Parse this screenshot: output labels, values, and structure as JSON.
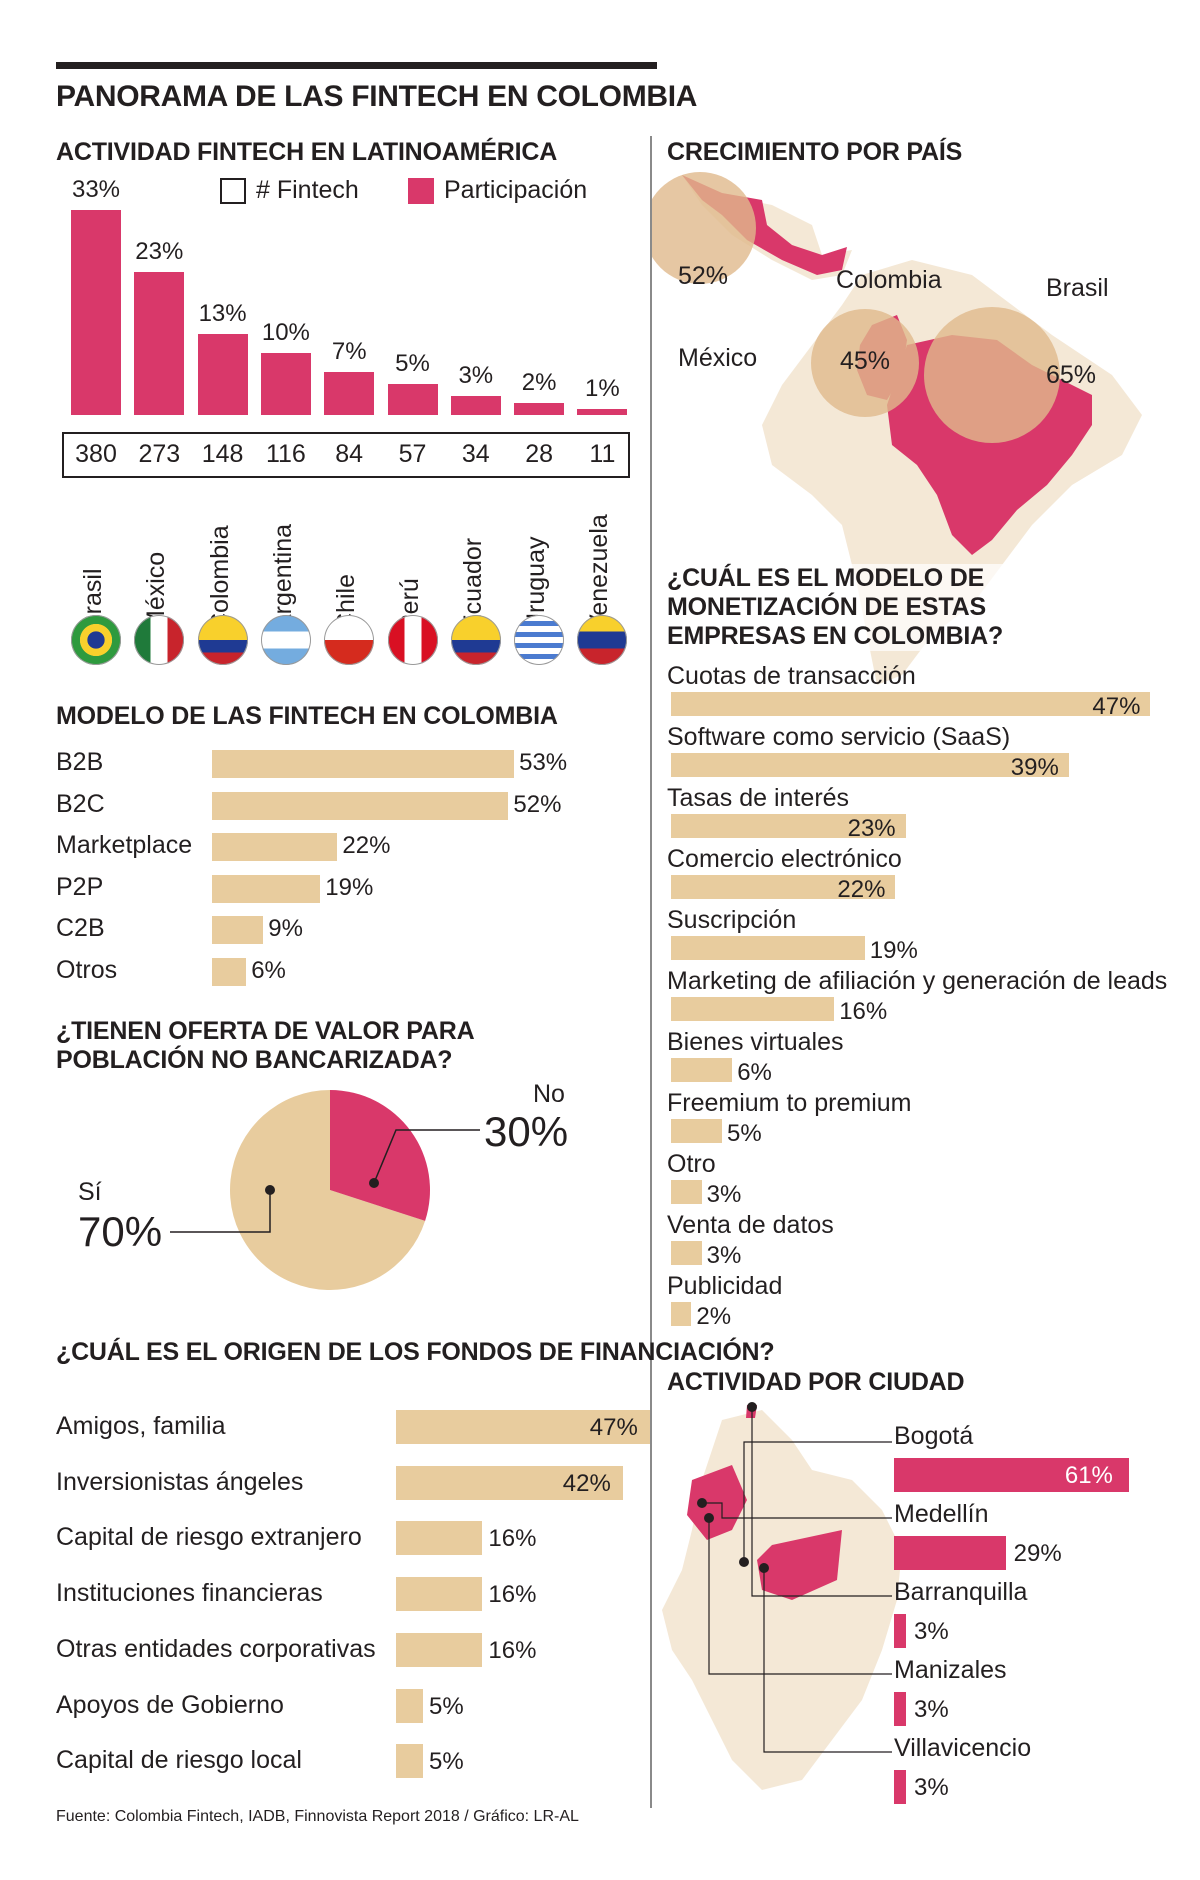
{
  "title": "PANORAMA DE LAS FINTECH EN COLOMBIA",
  "source": "Fuente: Colombia Fintech, IADB, Finnovista Report 2018 / Gráfico: LR-AL",
  "colors": {
    "pink": "#d9386a",
    "tan": "#e8cc9e",
    "ink": "#231f20"
  },
  "chart_data": [
    {
      "id": "latam",
      "type": "bar",
      "title": "ACTIVIDAD FINTECH EN LATINOAMÉRICA",
      "legend": [
        "# Fintech",
        "Participación"
      ],
      "categories": [
        "Brasil",
        "México",
        "Colombia",
        "Argentina",
        "Chile",
        "Perú",
        "Ecuador",
        "Uruguay",
        "Venezuela"
      ],
      "share": [
        33,
        23,
        13,
        10,
        7,
        5,
        3,
        2,
        1
      ],
      "share_labels": [
        "33%",
        "23%",
        "13%",
        "10%",
        "7%",
        "5%",
        "3%",
        "2%",
        "1%"
      ],
      "counts": [
        "380",
        "273",
        "148",
        "116",
        "84",
        "57",
        "34",
        "28",
        "11"
      ],
      "flag_icons": [
        "brazil-flag-icon",
        "mexico-flag-icon",
        "colombia-flag-icon",
        "argentina-flag-icon",
        "chile-flag-icon",
        "peru-flag-icon",
        "ecuador-flag-icon",
        "uruguay-flag-icon",
        "venezuela-flag-icon"
      ]
    },
    {
      "id": "growth",
      "type": "map",
      "title": "CRECIMIENTO POR PAÍS",
      "items": [
        {
          "country": "México",
          "value": "52%"
        },
        {
          "country": "Colombia",
          "value": "45%"
        },
        {
          "country": "Brasil",
          "value": "65%"
        }
      ]
    },
    {
      "id": "model",
      "type": "bar",
      "title": "MODELO DE LAS FINTECH EN COLOMBIA",
      "categories": [
        "B2B",
        "B2C",
        "Marketplace",
        "P2P",
        "C2B",
        "Otros"
      ],
      "values": [
        53,
        52,
        22,
        19,
        9,
        6
      ],
      "labels": [
        "53%",
        "52%",
        "22%",
        "19%",
        "9%",
        "6%"
      ]
    },
    {
      "id": "monetization",
      "type": "bar",
      "title": "¿CUÁL ES EL MODELO DE MONETIZACIÓN DE ESTAS EMPRESAS EN COLOMBIA?",
      "categories": [
        "Cuotas de transacción",
        "Software como servicio (SaaS)",
        "Tasas de interés",
        "Comercio electrónico",
        "Suscripción",
        "Marketing de afiliación y generación de leads",
        "Bienes virtuales",
        "Freemium to premium",
        "Otro",
        "Venta de datos",
        "Publicidad"
      ],
      "values": [
        47,
        39,
        23,
        22,
        19,
        16,
        6,
        5,
        3,
        3,
        2
      ],
      "labels": [
        "47%",
        "39%",
        "23%",
        "22%",
        "19%",
        "16%",
        "6%",
        "5%",
        "3%",
        "3%",
        "2%"
      ]
    },
    {
      "id": "unbanked",
      "type": "pie",
      "title": "¿TIENEN OFERTA DE VALOR PARA POBLACIÓN NO BANCARIZADA?",
      "slices": [
        {
          "name": "No",
          "value": 30,
          "label": "30%"
        },
        {
          "name": "Sí",
          "value": 70,
          "label": "70%"
        }
      ]
    },
    {
      "id": "funding",
      "type": "bar",
      "title": "¿CUÁL ES EL ORIGEN DE LOS FONDOS DE FINANCIACIÓN?",
      "categories": [
        "Amigos, familia",
        "Inversionistas ángeles",
        "Capital de riesgo extranjero",
        "Instituciones financieras",
        "Otras entidades corporativas",
        "Apoyos de Gobierno",
        "Capital de riesgo local"
      ],
      "values": [
        47,
        42,
        16,
        16,
        16,
        5,
        5
      ],
      "labels": [
        "47%",
        "42%",
        "16%",
        "16%",
        "16%",
        "5%",
        "5%"
      ]
    },
    {
      "id": "cities",
      "type": "bar",
      "title": "ACTIVIDAD POR CIUDAD",
      "categories": [
        "Bogotá",
        "Medellín",
        "Barranquilla",
        "Manizales",
        "Villavicencio"
      ],
      "values": [
        61,
        29,
        3,
        3,
        3
      ],
      "labels": [
        "61%",
        "29%",
        "3%",
        "3%",
        "3%"
      ]
    }
  ]
}
